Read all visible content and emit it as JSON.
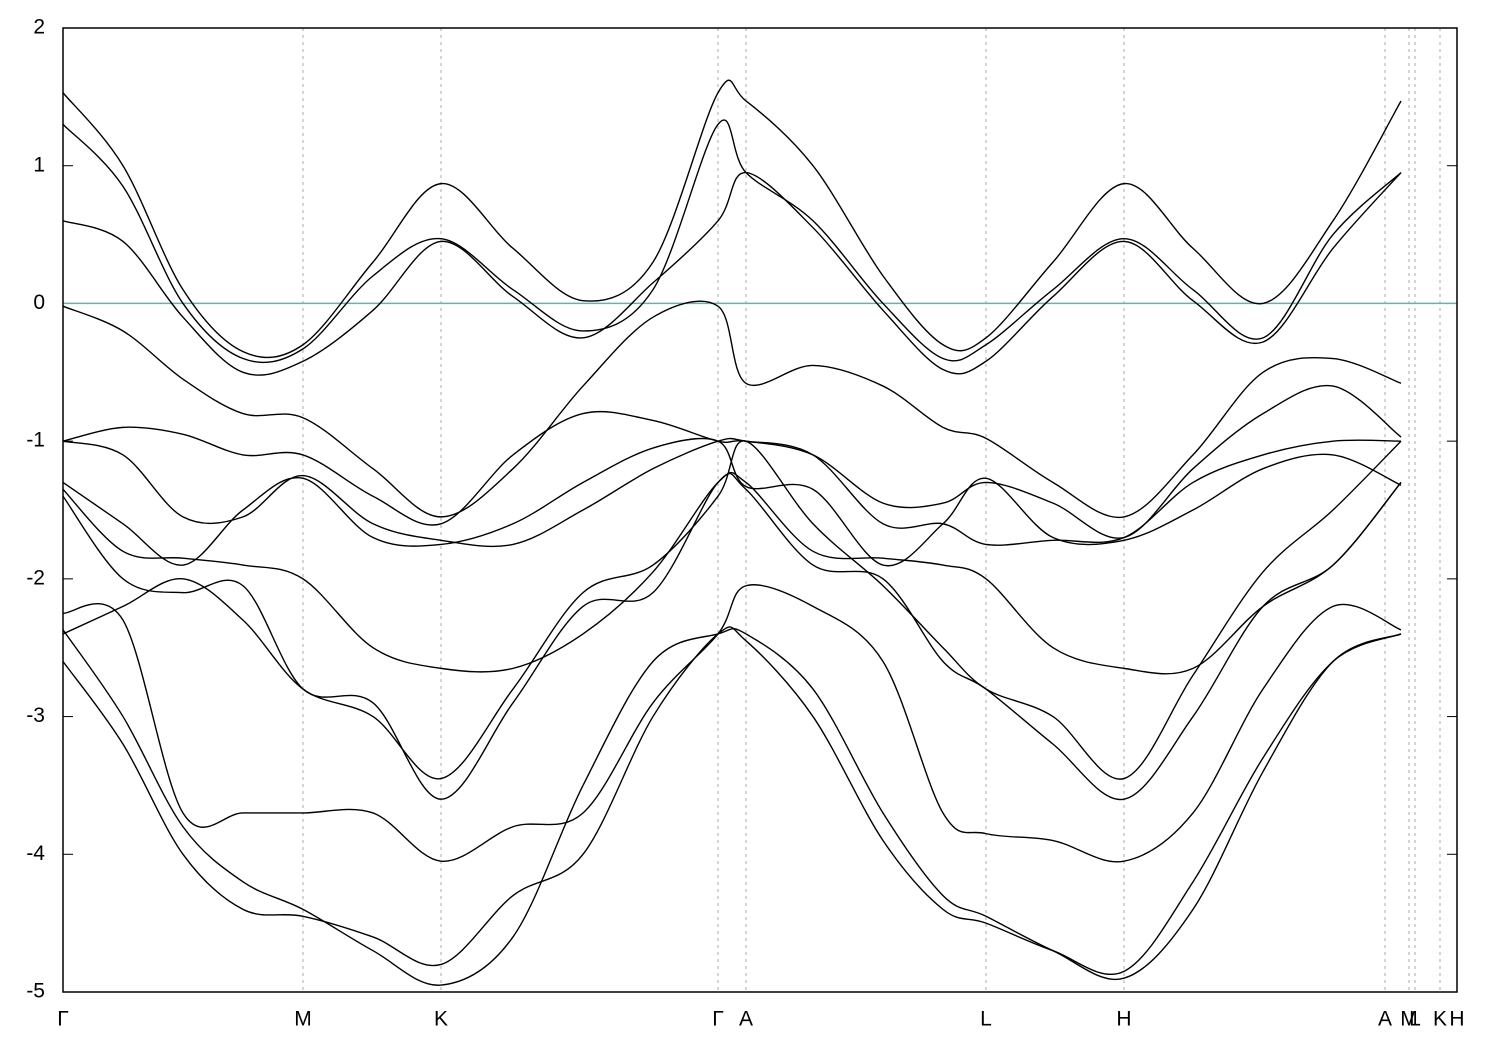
{
  "chart_data": {
    "type": "line",
    "x": [
      0,
      60,
      120,
      180,
      240,
      310,
      378,
      450,
      520,
      590,
      655,
      683,
      750,
      820,
      880,
      923,
      990,
      1061,
      1130,
      1200,
      1270,
      1338
    ],
    "xlim": [
      0,
      1394
    ],
    "xticks": [
      {
        "value": 0,
        "label": "Γ"
      },
      {
        "value": 240,
        "label": "M"
      },
      {
        "value": 378,
        "label": "K"
      },
      {
        "value": 655,
        "label": "Γ"
      },
      {
        "value": 683,
        "label": "A"
      },
      {
        "value": 923,
        "label": "L"
      },
      {
        "value": 1061,
        "label": "H"
      },
      {
        "value": 1322,
        "label": "A"
      },
      {
        "value": 1346,
        "label": "M"
      },
      {
        "value": 1352,
        "label": "L"
      },
      {
        "value": 1377,
        "label": "K"
      },
      {
        "value": 1394,
        "label": "H"
      }
    ],
    "ylim": [
      -5,
      2
    ],
    "yticks": [
      -5,
      -4,
      -3,
      -2,
      -1,
      0,
      1,
      2
    ],
    "grid": true,
    "color": "#000000",
    "fermi_level": 0,
    "fermi_color": "#5ab4c8",
    "series": [
      {
        "values": [
          1.53,
          1.0,
          0.1,
          -0.35,
          -0.3,
          0.3,
          0.87,
          0.4,
          0.02,
          0.3,
          1.53,
          1.47,
          1.0,
          0.2,
          -0.3,
          -0.25,
          0.3,
          0.87,
          0.4,
          0.0,
          0.6,
          1.47
        ]
      },
      {
        "values": [
          1.3,
          0.85,
          0.0,
          -0.4,
          -0.33,
          0.2,
          0.47,
          0.1,
          -0.2,
          0.1,
          1.3,
          0.95,
          0.6,
          0.0,
          -0.4,
          -0.3,
          0.1,
          0.47,
          0.1,
          -0.25,
          0.5,
          0.95
        ]
      },
      {
        "values": [
          0.6,
          0.45,
          -0.1,
          -0.5,
          -0.42,
          -0.05,
          0.45,
          0.05,
          -0.25,
          0.15,
          0.6,
          0.95,
          0.55,
          -0.05,
          -0.48,
          -0.42,
          0.05,
          0.45,
          0.02,
          -0.28,
          0.4,
          0.95
        ]
      },
      {
        "values": [
          -0.02,
          -0.2,
          -0.55,
          -0.8,
          -0.83,
          -1.2,
          -1.55,
          -1.2,
          -0.6,
          -0.1,
          -0.02,
          -0.58,
          -0.45,
          -0.6,
          -0.9,
          -0.98,
          -1.3,
          -1.55,
          -1.1,
          -0.5,
          -0.4,
          -0.58
        ]
      },
      {
        "values": [
          -1.0,
          -0.9,
          -0.95,
          -1.1,
          -1.1,
          -1.4,
          -1.6,
          -1.1,
          -0.8,
          -0.85,
          -1.0,
          -1.0,
          -1.1,
          -1.45,
          -1.45,
          -1.3,
          -1.45,
          -1.7,
          -1.2,
          -0.8,
          -0.6,
          -0.97
        ]
      },
      {
        "values": [
          -1.3,
          -1.6,
          -1.9,
          -1.5,
          -1.27,
          -1.7,
          -1.75,
          -1.6,
          -1.3,
          -1.05,
          -1.0,
          -1.33,
          -1.35,
          -1.9,
          -1.6,
          -1.27,
          -1.7,
          -1.72,
          -1.5,
          -1.2,
          -1.1,
          -1.32
        ]
      },
      {
        "values": [
          -2.4,
          -2.2,
          -2.0,
          -2.3,
          -2.8,
          -3.0,
          -3.45,
          -2.8,
          -2.1,
          -1.9,
          -1.4,
          -1.0,
          -1.6,
          -2.05,
          -2.5,
          -2.8,
          -3.0,
          -3.45,
          -2.7,
          -1.95,
          -1.5,
          -1.0
        ]
      },
      {
        "values": [
          -2.37,
          -3.0,
          -3.8,
          -4.2,
          -4.4,
          -4.7,
          -4.95,
          -4.6,
          -3.5,
          -2.6,
          -2.4,
          -2.4,
          -2.8,
          -3.7,
          -4.3,
          -4.45,
          -4.7,
          -4.9,
          -4.4,
          -3.4,
          -2.6,
          -2.4
        ]
      },
      {
        "values": [
          -2.6,
          -3.2,
          -4.0,
          -4.4,
          -4.45,
          -4.6,
          -4.8,
          -4.3,
          -4.0,
          -3.0,
          -2.4,
          -2.45,
          -3.0,
          -3.9,
          -4.4,
          -4.5,
          -4.7,
          -4.85,
          -4.2,
          -3.3,
          -2.6,
          -2.4
        ]
      },
      {
        "values": [
          -1.4,
          -2.0,
          -2.1,
          -2.05,
          -2.8,
          -2.9,
          -3.6,
          -2.9,
          -2.2,
          -2.1,
          -1.3,
          -1.35,
          -1.9,
          -2.0,
          -2.6,
          -2.8,
          -3.2,
          -3.6,
          -3.0,
          -2.2,
          -1.9,
          -1.3
        ]
      },
      {
        "values": [
          -2.25,
          -2.3,
          -3.7,
          -3.7,
          -3.7,
          -3.7,
          -4.05,
          -3.8,
          -3.7,
          -2.9,
          -2.4,
          -2.05,
          -2.2,
          -2.6,
          -3.7,
          -3.85,
          -3.9,
          -4.05,
          -3.7,
          -2.8,
          -2.2,
          -2.37
        ]
      },
      {
        "values": [
          -1.35,
          -1.8,
          -1.85,
          -1.9,
          -2.0,
          -2.5,
          -2.65,
          -2.65,
          -2.4,
          -1.95,
          -1.3,
          -1.3,
          -1.8,
          -1.85,
          -1.9,
          -2.0,
          -2.5,
          -2.65,
          -2.65,
          -2.2,
          -1.9,
          -1.3
        ]
      },
      {
        "values": [
          -1.0,
          -1.1,
          -1.55,
          -1.55,
          -1.25,
          -1.6,
          -1.72,
          -1.75,
          -1.5,
          -1.2,
          -1.0,
          -1.0,
          -1.1,
          -1.6,
          -1.6,
          -1.75,
          -1.72,
          -1.7,
          -1.3,
          -1.1,
          -1.0,
          -1.0
        ]
      }
    ]
  }
}
